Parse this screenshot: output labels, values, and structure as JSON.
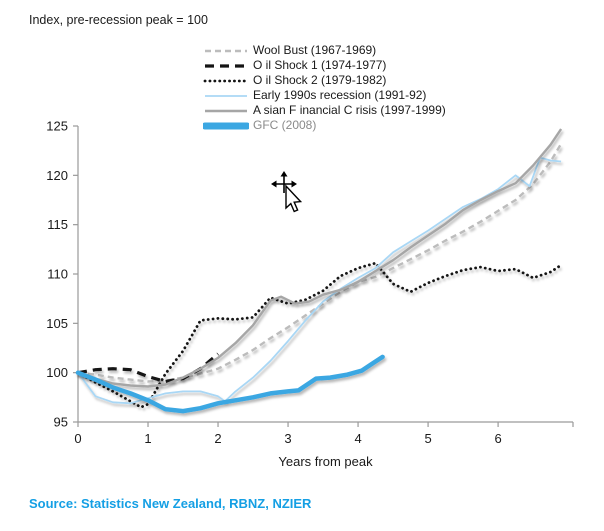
{
  "title": "Index, pre-recession peak = 100",
  "source": {
    "text": "Source: Statistics New Zealand, RBNZ, NZIER",
    "color": "#149fe4"
  },
  "axis_color": "#9a9a9a",
  "tick_label_color": "#1a1a1a",
  "chart_data": {
    "type": "line",
    "title": "Index, pre-recession peak = 100",
    "xlabel": "Years from peak",
    "ylabel": "",
    "xlim": [
      0,
      7.07
    ],
    "ylim": [
      95,
      125
    ],
    "x_ticks": [
      0,
      1,
      2,
      3,
      4,
      5,
      6
    ],
    "y_ticks": [
      95,
      100,
      105,
      110,
      115,
      120,
      125
    ],
    "grid": false,
    "legend_position": "top",
    "series": [
      {
        "name": "Wool Bust (1967-1969)",
        "slug": "wool-bust",
        "color": "#bcbcbc",
        "label_color": "#1a1a1a",
        "style": "dashed-small",
        "width": 2.4,
        "points": [
          [
            0,
            100
          ],
          [
            0.25,
            99.8
          ],
          [
            0.5,
            99.5
          ],
          [
            0.75,
            99.3
          ],
          [
            1,
            99.1
          ],
          [
            1.25,
            99.2
          ],
          [
            1.5,
            99.5
          ],
          [
            1.75,
            99.9
          ],
          [
            2,
            100.4
          ],
          [
            2.25,
            101.3
          ],
          [
            2.5,
            102.3
          ],
          [
            2.75,
            103.5
          ],
          [
            3,
            104.6
          ],
          [
            3.25,
            105.8
          ],
          [
            3.5,
            107
          ],
          [
            3.75,
            108.2
          ],
          [
            4,
            109.2
          ],
          [
            4.25,
            109.7
          ],
          [
            4.5,
            110.6
          ],
          [
            4.75,
            111.5
          ],
          [
            5,
            112.4
          ],
          [
            5.25,
            113.4
          ],
          [
            5.5,
            114.3
          ],
          [
            5.75,
            115.3
          ],
          [
            6,
            116.4
          ],
          [
            6.25,
            117.5
          ],
          [
            6.5,
            119.1
          ],
          [
            6.75,
            121.4
          ],
          [
            6.9,
            123.2
          ]
        ]
      },
      {
        "name": "O il Shock 1 (1974-1977)",
        "slug": "oil-shock-1",
        "color": "#141414",
        "label_color": "#1a1a1a",
        "style": "dashed-large",
        "width": 3.2,
        "points": [
          [
            0,
            100
          ],
          [
            0.25,
            100.3
          ],
          [
            0.5,
            100.4
          ],
          [
            0.75,
            100.3
          ],
          [
            1,
            99.6
          ],
          [
            1.25,
            99.1
          ],
          [
            1.5,
            99.4
          ],
          [
            1.75,
            100.4
          ],
          [
            2,
            101.9
          ]
        ]
      },
      {
        "name": "O il Shock 2 (1979-1982)",
        "slug": "oil-shock-2",
        "color": "#141414",
        "label_color": "#1a1a1a",
        "style": "dotted",
        "width": 2.8,
        "points": [
          [
            0,
            100
          ],
          [
            0.25,
            99
          ],
          [
            0.5,
            98.1
          ],
          [
            0.75,
            97.1
          ],
          [
            0.9,
            96.5
          ],
          [
            1,
            96.8
          ],
          [
            1.25,
            99.9
          ],
          [
            1.5,
            102.2
          ],
          [
            1.75,
            105.3
          ],
          [
            2,
            105.5
          ],
          [
            2.25,
            105.4
          ],
          [
            2.5,
            105.6
          ],
          [
            2.75,
            107.6
          ],
          [
            3,
            107
          ],
          [
            3.25,
            107.4
          ],
          [
            3.5,
            108.3
          ],
          [
            3.75,
            109.8
          ],
          [
            4,
            110.6
          ],
          [
            4.25,
            111.1
          ],
          [
            4.5,
            109
          ],
          [
            4.75,
            108.2
          ],
          [
            5,
            109.1
          ],
          [
            5.25,
            109.8
          ],
          [
            5.5,
            110.4
          ],
          [
            5.75,
            110.7
          ],
          [
            6,
            110.3
          ],
          [
            6.25,
            110.5
          ],
          [
            6.5,
            109.6
          ],
          [
            6.75,
            110.2
          ],
          [
            6.9,
            110.9
          ]
        ]
      },
      {
        "name": "Early  1990s recession (1991-92)",
        "slug": "early-1990s-recession",
        "color": "#a9d7f5",
        "label_color": "#1a1a1a",
        "style": "solid",
        "width": 1.8,
        "points": [
          [
            0,
            100
          ],
          [
            0.25,
            97.6
          ],
          [
            0.5,
            97
          ],
          [
            0.75,
            96.9
          ],
          [
            1,
            97.4
          ],
          [
            1.25,
            97.9
          ],
          [
            1.5,
            98.1
          ],
          [
            1.75,
            98.1
          ],
          [
            2,
            97.6
          ],
          [
            2.1,
            97.1
          ],
          [
            2.25,
            98.1
          ],
          [
            2.5,
            99.5
          ],
          [
            2.75,
            101.2
          ],
          [
            3,
            103.2
          ],
          [
            3.25,
            105.3
          ],
          [
            3.5,
            107.2
          ],
          [
            3.75,
            108.5
          ],
          [
            4,
            109.6
          ],
          [
            4.25,
            110.6
          ],
          [
            4.5,
            112.2
          ],
          [
            4.75,
            113.3
          ],
          [
            5,
            114.4
          ],
          [
            5.25,
            115.6
          ],
          [
            5.5,
            116.8
          ],
          [
            5.75,
            117.6
          ],
          [
            6,
            118.6
          ],
          [
            6.25,
            120
          ],
          [
            6.45,
            118.9
          ],
          [
            6.6,
            121.8
          ],
          [
            6.75,
            121.5
          ],
          [
            6.9,
            121.4
          ]
        ]
      },
      {
        "name": "A sian F inancial C risis (1997-1999)",
        "slug": "asian-financial-crisis",
        "color": "#a6a6a6",
        "label_color": "#1a1a1a",
        "style": "solid",
        "width": 2.4,
        "points": [
          [
            0,
            100
          ],
          [
            0.25,
            99.4
          ],
          [
            0.5,
            98.9
          ],
          [
            0.75,
            98.7
          ],
          [
            1,
            98.6
          ],
          [
            1.25,
            98.8
          ],
          [
            1.5,
            99.5
          ],
          [
            1.75,
            100.4
          ],
          [
            2,
            101.5
          ],
          [
            2.25,
            103
          ],
          [
            2.5,
            104.8
          ],
          [
            2.75,
            107.3
          ],
          [
            2.9,
            107.7
          ],
          [
            3.1,
            107
          ],
          [
            3.3,
            107.2
          ],
          [
            3.5,
            107.9
          ],
          [
            3.75,
            108.4
          ],
          [
            4,
            109.2
          ],
          [
            4.25,
            110.3
          ],
          [
            4.5,
            111.4
          ],
          [
            4.75,
            112.7
          ],
          [
            5,
            113.9
          ],
          [
            5.25,
            115.1
          ],
          [
            5.5,
            116.5
          ],
          [
            5.75,
            117.5
          ],
          [
            6,
            118.4
          ],
          [
            6.25,
            119.2
          ],
          [
            6.5,
            121
          ],
          [
            6.75,
            123.1
          ],
          [
            6.9,
            124.7
          ]
        ]
      },
      {
        "name": "GFC (2008)",
        "slug": "gfc",
        "color": "#3ba7e2",
        "label_color": "#8a8a8a",
        "style": "solid",
        "width": 4.5,
        "points": [
          [
            0,
            100
          ],
          [
            0.25,
            99.3
          ],
          [
            0.5,
            98.5
          ],
          [
            0.75,
            97.9
          ],
          [
            1,
            97.2
          ],
          [
            1.25,
            96.3
          ],
          [
            1.5,
            96.1
          ],
          [
            1.75,
            96.4
          ],
          [
            2,
            96.9
          ],
          [
            2.25,
            97.2
          ],
          [
            2.5,
            97.5
          ],
          [
            2.75,
            97.9
          ],
          [
            3,
            98.1
          ],
          [
            3.15,
            98.2
          ],
          [
            3.4,
            99.4
          ],
          [
            3.6,
            99.5
          ],
          [
            3.85,
            99.8
          ],
          [
            4.05,
            100.2
          ],
          [
            4.2,
            100.9
          ],
          [
            4.35,
            101.6
          ]
        ]
      }
    ]
  }
}
